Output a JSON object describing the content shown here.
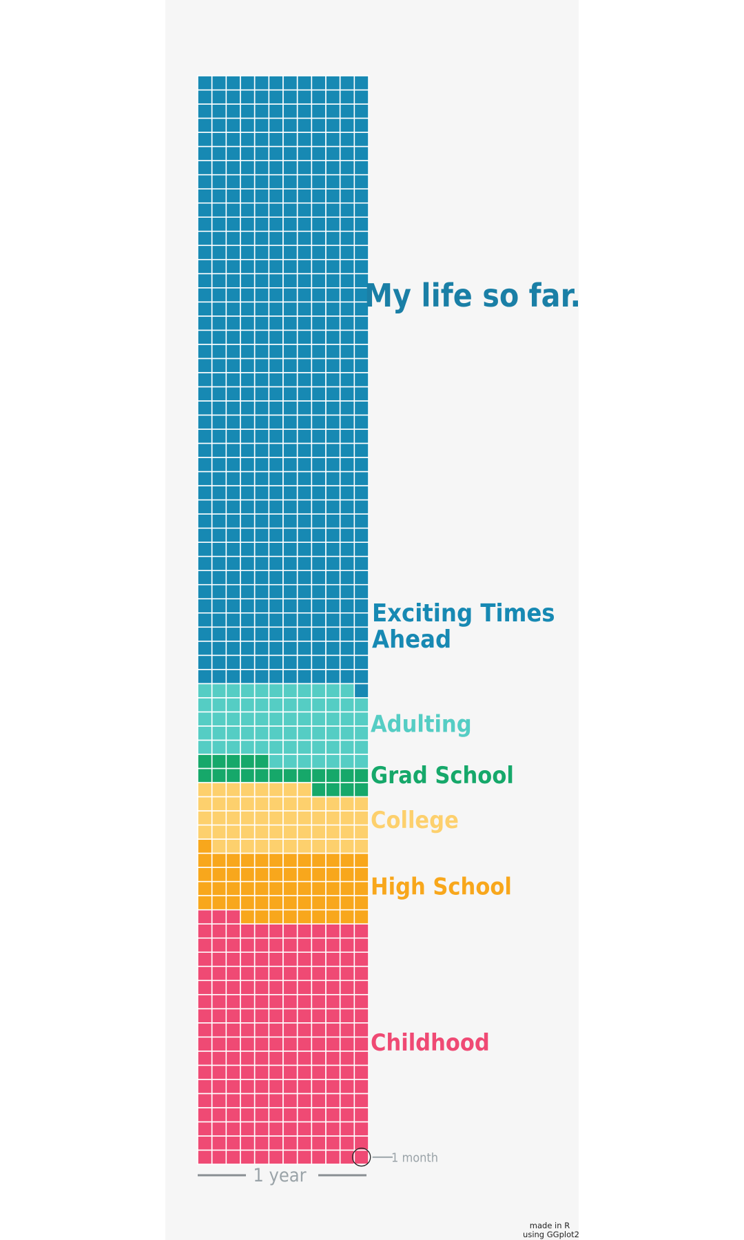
{
  "chart_data": {
    "type": "waffle",
    "title": "My life so far.",
    "cell_unit": "1 month",
    "row_unit": "1 year",
    "months_per_row": 12,
    "total_months": 924,
    "direction": "filled bottom-to-top, left-to-right",
    "segments": [
      {
        "label": "Childhood",
        "months": 207,
        "color": "#ef4a74"
      },
      {
        "label": "High School",
        "months": 58,
        "color": "#f8a71c"
      },
      {
        "label": "College",
        "months": 55,
        "color": "#fdd06d"
      },
      {
        "label": "Grad School",
        "months": 21,
        "color": "#16a86a"
      },
      {
        "label": "Adulting",
        "months": 66,
        "color": "#55cdc4"
      },
      {
        "label": "Exciting Times Ahead",
        "months": 517,
        "color": "#1789b3"
      }
    ],
    "annotations": {
      "cell_note": "1 month",
      "row_note": "1 year",
      "caption_line1": "made in R",
      "caption_line2": "using GGplot2"
    },
    "title_color": "#1a7fa6",
    "annotation_color": "#9aa3a8",
    "background": "#f6f6f6"
  }
}
